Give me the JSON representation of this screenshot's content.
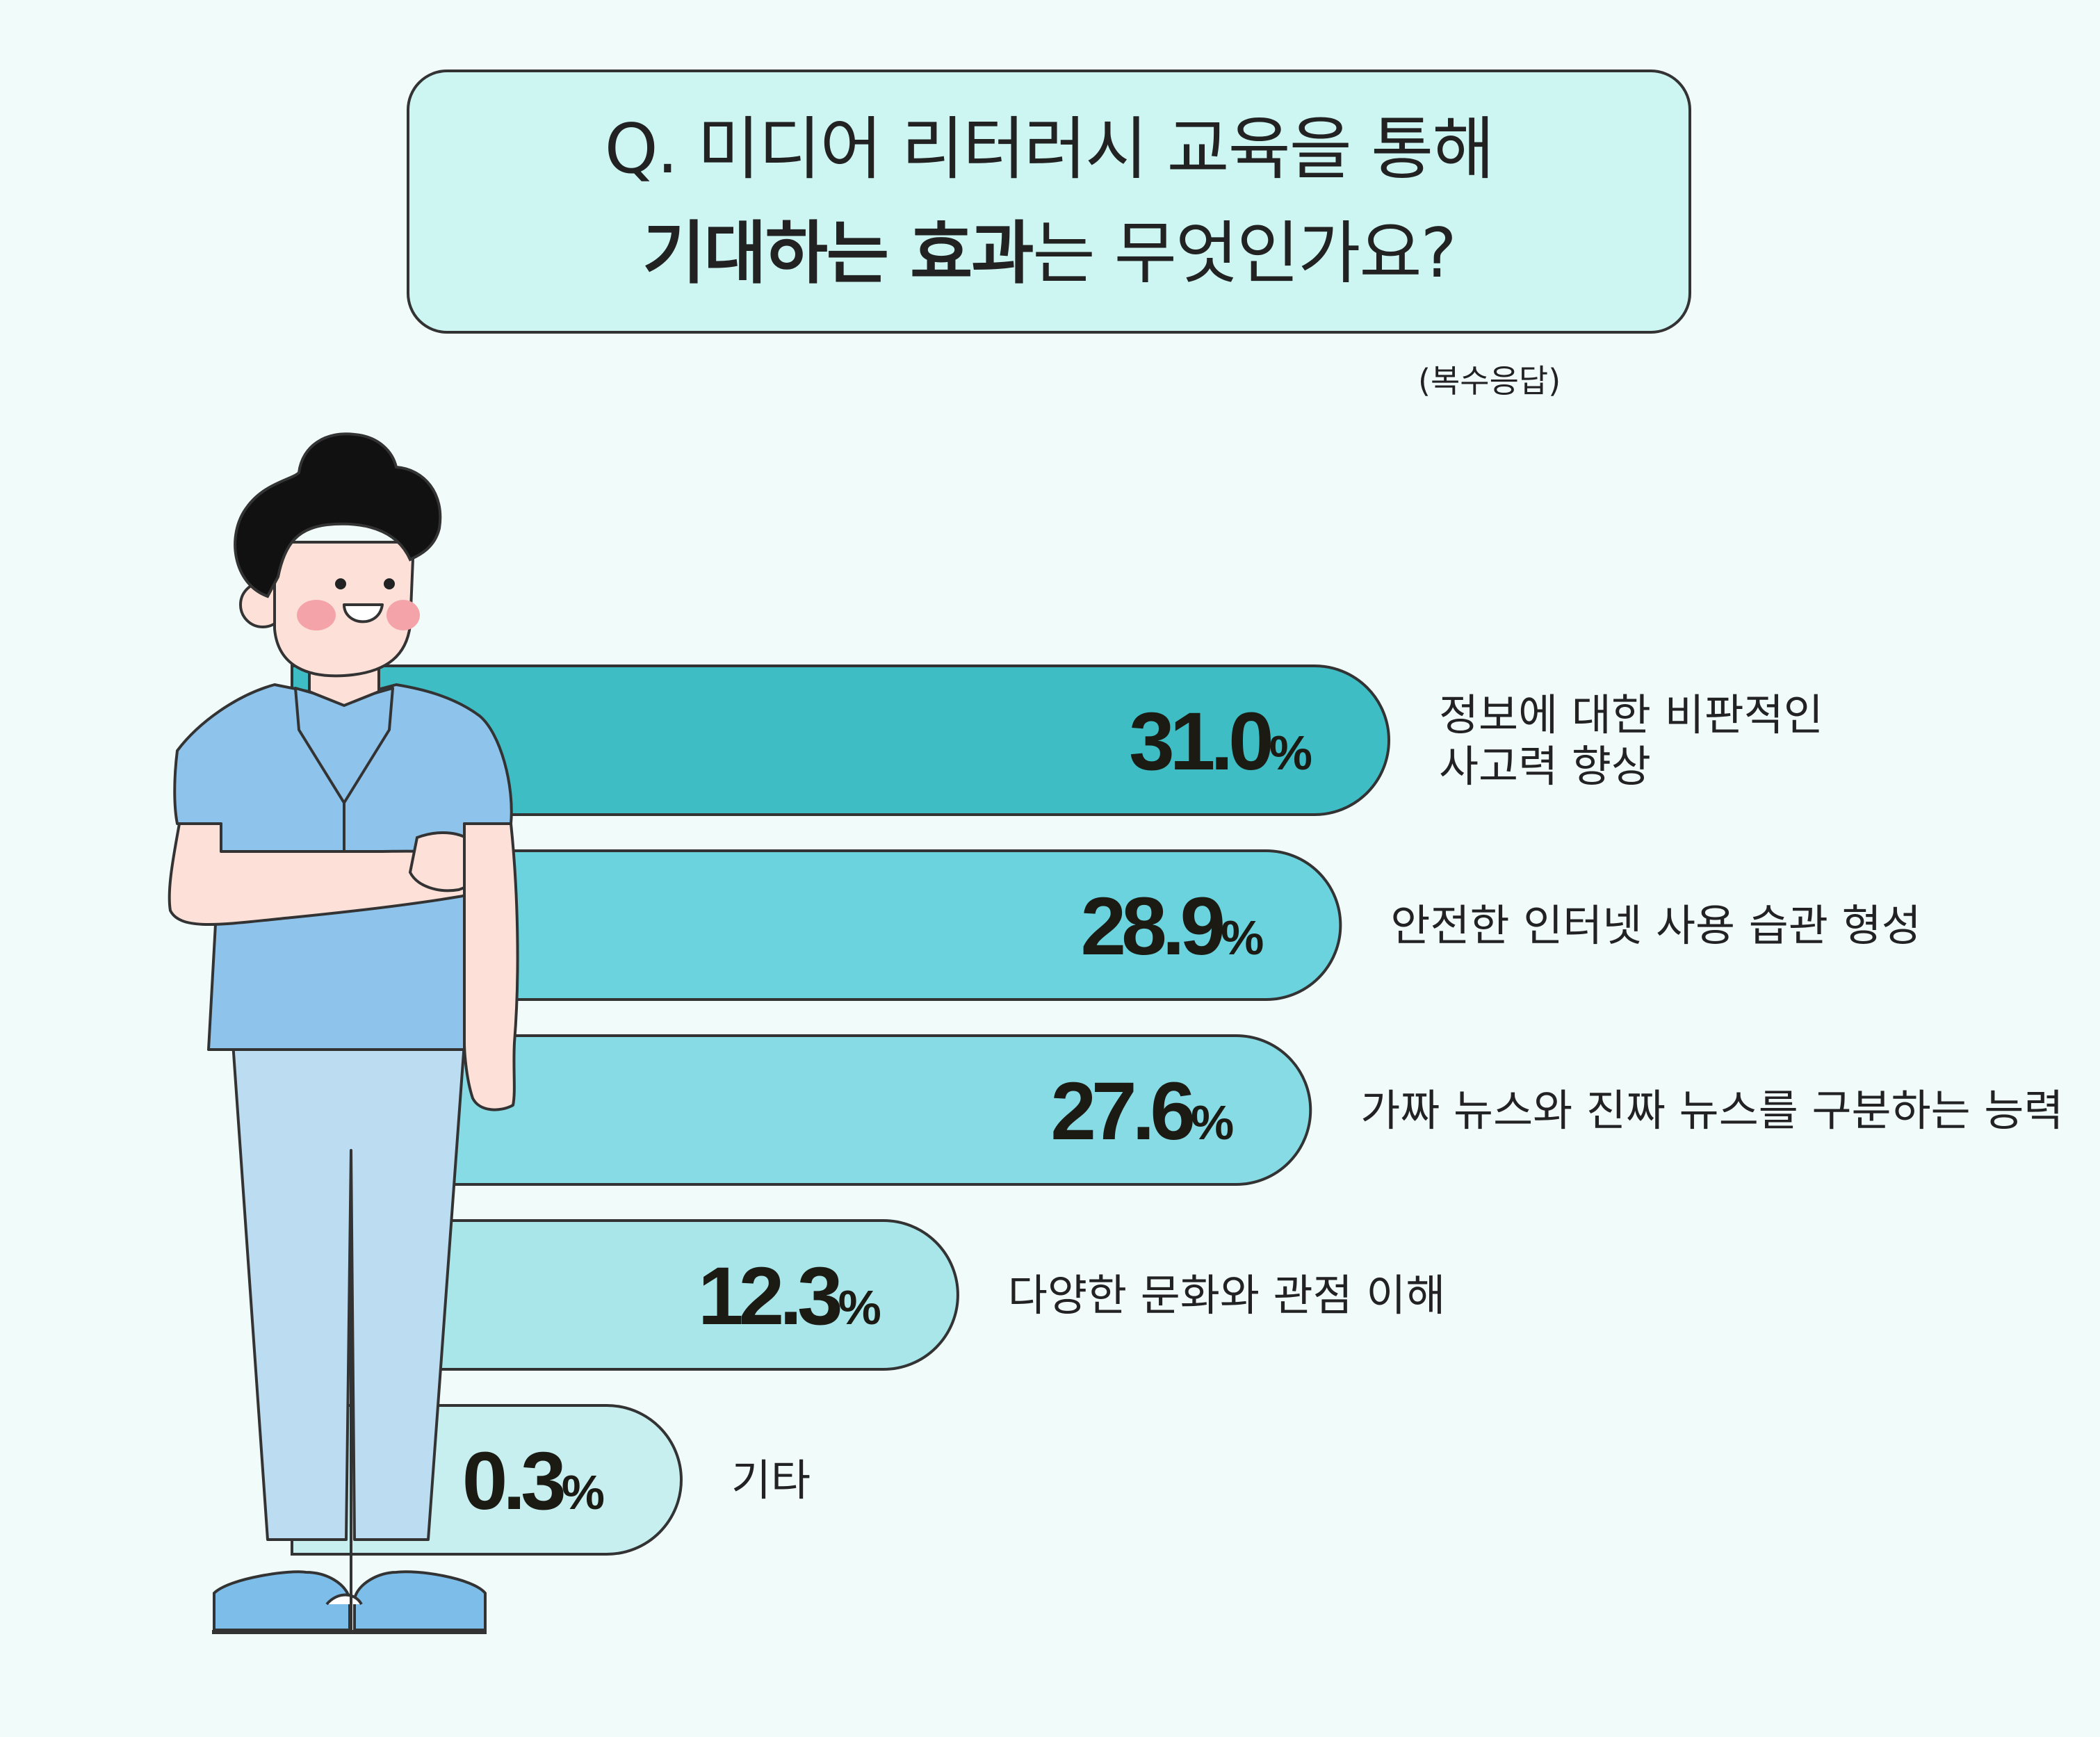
{
  "header": {
    "question_line1": "Q. 미디어 리터러시 교육을 통해",
    "question_line2_bold": "기대하는 효과",
    "question_line2_rest": "는 무엇인가요?",
    "note": "(복수응답)"
  },
  "colors": {
    "background": "#f1fbfa",
    "question_box": "#cdf6f3",
    "bars": [
      "#3fbdc4",
      "#6ad3dd",
      "#87dbe4",
      "#a9e6ea",
      "#c8eff0"
    ]
  },
  "chart_data": {
    "type": "bar",
    "orientation": "horizontal",
    "unit": "%",
    "categories": [
      "정보에 대한 비판적인 사고력 향상",
      "안전한 인터넷 사용 습관 형성",
      "가짜 뉴스와 진짜 뉴스를 구분하는 능력",
      "다양한 문화와 관점 이해",
      "기타"
    ],
    "category_lines": [
      [
        "정보에 대한 비판적인",
        "사고력 향상"
      ],
      [
        "안전한 인터넷 사용 습관 형성"
      ],
      [
        "가짜 뉴스와 진짜 뉴스를 구분하는 능력"
      ],
      [
        "다양한 문화와 관점 이해"
      ],
      [
        "기타"
      ]
    ],
    "values": [
      31.0,
      28.9,
      27.6,
      12.3,
      0.3
    ],
    "value_labels": [
      "31.0",
      "28.9",
      "27.6",
      "12.3",
      "0.3"
    ],
    "grid": false,
    "legend": "none"
  }
}
